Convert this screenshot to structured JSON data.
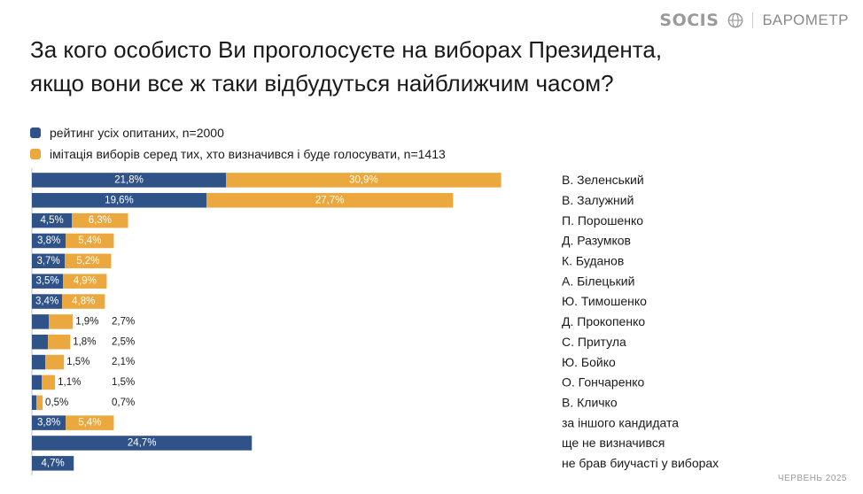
{
  "brand": {
    "logo": "SOCIS",
    "label": "БАРОМЕТР"
  },
  "title": {
    "line1": "За кого особисто Ви проголосуєте на виборах Президента,",
    "line2": "якщо вони все ж таки відбудуться найближчим часом?"
  },
  "colors": {
    "blue": "#2f5288",
    "orange": "#eba83f",
    "text": "#1a1a1a"
  },
  "footer": {
    "date": "ЧЕРВЕНЬ 2025"
  },
  "chart_data": {
    "type": "bar",
    "orientation": "horizontal",
    "stacked": true,
    "grid": false,
    "legend_position": "top-left",
    "categories": [
      "В. Зеленський",
      "В. Залужний",
      "П. Порошенко",
      "Д. Разумков",
      "К. Буданов",
      "А. Білецький",
      "Ю. Тимошенко",
      "Д. Прокопенко",
      "С. Притула",
      "Ю. Бойко",
      "О. Гончаренко",
      "В. Кличко",
      "за іншого кандидата",
      "ще не визначився",
      "не брав биучасті у виборах"
    ],
    "series": [
      {
        "name": "рейтинг усіх опитаних, n=2000",
        "color": "#2f5288",
        "values": [
          21.8,
          19.6,
          4.5,
          3.8,
          3.7,
          3.5,
          3.4,
          1.9,
          1.8,
          1.5,
          1.1,
          0.5,
          3.8,
          24.7,
          4.7
        ],
        "labels": [
          "21,8%",
          "19,6%",
          "4,5%",
          "3,8%",
          "3,7%",
          "3,5%",
          "3,4%",
          "1,9%",
          "1,8%",
          "1,5%",
          "1,1%",
          "0,5%",
          "3,8%",
          "24,7%",
          "4,7%"
        ]
      },
      {
        "name": "імітація виборів серед тих, хто визначився і буде голосувати, n=1413",
        "color": "#eba83f",
        "values": [
          30.9,
          27.7,
          6.3,
          5.4,
          5.2,
          4.9,
          4.8,
          2.7,
          2.5,
          2.1,
          1.5,
          0.7,
          5.4,
          null,
          null
        ],
        "labels": [
          "30,9%",
          "27,7%",
          "6,3%",
          "5,4%",
          "5,2%",
          "4,9%",
          "4,8%",
          "2,7%",
          "2,5%",
          "2,1%",
          "1,5%",
          "0,7%",
          "5,4%",
          null,
          null
        ]
      }
    ]
  }
}
